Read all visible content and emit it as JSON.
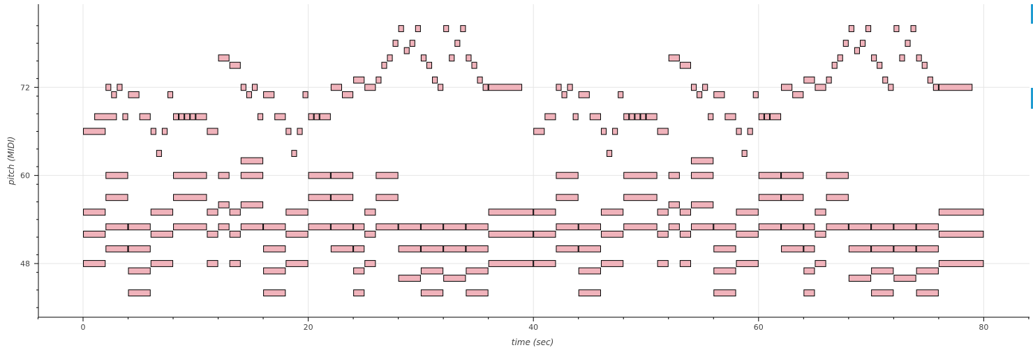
{
  "chart_data": {
    "type": "piano-roll",
    "xlabel": "time (sec)",
    "ylabel": "pitch (MIDI)",
    "xlim": [
      -4,
      84
    ],
    "ylim": [
      41,
      83
    ],
    "xticks": [
      0,
      20,
      40,
      60,
      80
    ],
    "yticks": [
      48,
      60,
      72
    ],
    "grid": true,
    "colors": {
      "note_fill": "#f0b3bb",
      "note_stroke": "#000000",
      "grid": "#e5e5e5",
      "axis": "#000000"
    },
    "note_height": 0.84,
    "notes": [
      [
        0,
        2,
        66
      ],
      [
        0,
        2,
        55
      ],
      [
        0,
        2,
        52
      ],
      [
        0,
        2,
        48
      ],
      [
        1,
        2,
        68
      ],
      [
        2,
        0.5,
        72
      ],
      [
        2,
        2,
        60
      ],
      [
        2,
        2,
        57
      ],
      [
        2,
        2,
        53
      ],
      [
        2,
        2,
        50
      ],
      [
        2.5,
        0.5,
        71
      ],
      [
        3,
        0.5,
        72
      ],
      [
        3.5,
        0.5,
        68
      ],
      [
        4,
        1,
        71
      ],
      [
        4,
        2,
        53
      ],
      [
        4,
        2,
        50
      ],
      [
        4,
        2,
        47
      ],
      [
        4,
        2,
        44
      ],
      [
        5,
        1,
        68
      ],
      [
        6,
        0.5,
        66
      ],
      [
        6,
        2,
        55
      ],
      [
        6,
        2,
        52
      ],
      [
        6,
        2,
        48
      ],
      [
        6.5,
        0.5,
        63
      ],
      [
        7,
        0.5,
        66
      ],
      [
        7.5,
        0.5,
        71
      ],
      [
        8,
        0.5,
        68
      ],
      [
        8,
        3,
        60
      ],
      [
        8,
        3,
        57
      ],
      [
        8,
        3,
        53
      ],
      [
        8.5,
        0.5,
        68
      ],
      [
        9,
        0.5,
        68
      ],
      [
        9.5,
        0.5,
        68
      ],
      [
        10,
        1,
        68
      ],
      [
        11,
        1,
        66
      ],
      [
        11,
        1,
        55
      ],
      [
        11,
        1,
        52
      ],
      [
        11,
        1,
        48
      ],
      [
        12,
        1,
        76
      ],
      [
        12,
        1,
        60
      ],
      [
        12,
        1,
        56
      ],
      [
        12,
        1,
        53
      ],
      [
        13,
        1,
        75
      ],
      [
        13,
        1,
        55
      ],
      [
        13,
        1,
        52
      ],
      [
        13,
        1,
        48
      ],
      [
        14,
        0.5,
        72
      ],
      [
        14,
        2,
        62
      ],
      [
        14,
        2,
        60
      ],
      [
        14,
        2,
        56
      ],
      [
        14,
        2,
        53
      ],
      [
        14.5,
        0.5,
        71
      ],
      [
        15,
        0.5,
        72
      ],
      [
        15.5,
        0.5,
        68
      ],
      [
        16,
        1,
        71
      ],
      [
        16,
        2,
        53
      ],
      [
        16,
        2,
        50
      ],
      [
        16,
        2,
        47
      ],
      [
        16,
        2,
        44
      ],
      [
        17,
        1,
        68
      ],
      [
        18,
        0.5,
        66
      ],
      [
        18,
        2,
        55
      ],
      [
        18,
        2,
        52
      ],
      [
        18,
        2,
        48
      ],
      [
        18.5,
        0.5,
        63
      ],
      [
        19,
        0.5,
        66
      ],
      [
        19.5,
        0.5,
        71
      ],
      [
        20,
        0.5,
        68
      ],
      [
        20,
        2,
        60
      ],
      [
        20,
        2,
        57
      ],
      [
        20,
        2,
        53
      ],
      [
        20.5,
        0.5,
        68
      ],
      [
        21,
        1,
        68
      ],
      [
        22,
        1,
        72
      ],
      [
        22,
        2,
        60
      ],
      [
        22,
        2,
        57
      ],
      [
        22,
        2,
        53
      ],
      [
        22,
        2,
        50
      ],
      [
        23,
        1,
        71
      ],
      [
        24,
        1,
        73
      ],
      [
        24,
        1,
        53
      ],
      [
        24,
        1,
        50
      ],
      [
        24,
        1,
        47
      ],
      [
        24,
        1,
        44
      ],
      [
        25,
        1,
        72
      ],
      [
        25,
        1,
        55
      ],
      [
        25,
        1,
        52
      ],
      [
        25,
        1,
        48
      ],
      [
        26,
        0.5,
        73
      ],
      [
        26,
        2,
        60
      ],
      [
        26,
        2,
        57
      ],
      [
        26,
        2,
        53
      ],
      [
        26.5,
        0.5,
        75
      ],
      [
        27,
        0.5,
        76
      ],
      [
        27.5,
        0.5,
        78
      ],
      [
        28,
        0.5,
        80
      ],
      [
        28,
        2,
        53
      ],
      [
        28,
        2,
        50
      ],
      [
        28,
        2,
        46
      ],
      [
        28.5,
        0.5,
        77
      ],
      [
        29,
        0.5,
        78
      ],
      [
        29.5,
        0.5,
        80
      ],
      [
        30,
        0.5,
        76
      ],
      [
        30,
        2,
        53
      ],
      [
        30,
        2,
        50
      ],
      [
        30,
        2,
        47
      ],
      [
        30,
        2,
        44
      ],
      [
        30.5,
        0.5,
        75
      ],
      [
        31,
        0.5,
        73
      ],
      [
        31.5,
        0.5,
        72
      ],
      [
        32,
        0.5,
        80
      ],
      [
        32,
        2,
        53
      ],
      [
        32,
        2,
        50
      ],
      [
        32,
        2,
        46
      ],
      [
        32.5,
        0.5,
        76
      ],
      [
        33,
        0.5,
        78
      ],
      [
        33.5,
        0.5,
        80
      ],
      [
        34,
        0.5,
        76
      ],
      [
        34,
        2,
        53
      ],
      [
        34,
        2,
        50
      ],
      [
        34,
        2,
        47
      ],
      [
        34,
        2,
        44
      ],
      [
        34.5,
        0.5,
        75
      ],
      [
        35,
        0.5,
        73
      ],
      [
        35.5,
        0.5,
        72
      ],
      [
        36,
        3,
        72
      ],
      [
        36,
        4,
        55
      ],
      [
        36,
        4,
        52
      ],
      [
        36,
        4,
        48
      ],
      [
        40,
        1,
        66
      ],
      [
        40,
        2,
        55
      ],
      [
        40,
        2,
        52
      ],
      [
        40,
        2,
        48
      ],
      [
        41,
        1,
        68
      ],
      [
        42,
        0.5,
        72
      ],
      [
        42,
        2,
        60
      ],
      [
        42,
        2,
        57
      ],
      [
        42,
        2,
        53
      ],
      [
        42,
        2,
        50
      ],
      [
        42.5,
        0.5,
        71
      ],
      [
        43,
        0.5,
        72
      ],
      [
        43.5,
        0.5,
        68
      ],
      [
        44,
        1,
        71
      ],
      [
        44,
        2,
        53
      ],
      [
        44,
        2,
        50
      ],
      [
        44,
        2,
        47
      ],
      [
        44,
        2,
        44
      ],
      [
        45,
        1,
        68
      ],
      [
        46,
        0.5,
        66
      ],
      [
        46,
        2,
        55
      ],
      [
        46,
        2,
        52
      ],
      [
        46,
        2,
        48
      ],
      [
        46.5,
        0.5,
        63
      ],
      [
        47,
        0.5,
        66
      ],
      [
        47.5,
        0.5,
        71
      ],
      [
        48,
        0.5,
        68
      ],
      [
        48,
        3,
        60
      ],
      [
        48,
        3,
        57
      ],
      [
        48,
        3,
        53
      ],
      [
        48.5,
        0.5,
        68
      ],
      [
        49,
        0.5,
        68
      ],
      [
        49.5,
        0.5,
        68
      ],
      [
        50,
        1,
        68
      ],
      [
        51,
        1,
        66
      ],
      [
        51,
        1,
        55
      ],
      [
        51,
        1,
        52
      ],
      [
        51,
        1,
        48
      ],
      [
        52,
        1,
        76
      ],
      [
        52,
        1,
        60
      ],
      [
        52,
        1,
        56
      ],
      [
        52,
        1,
        53
      ],
      [
        53,
        1,
        75
      ],
      [
        53,
        1,
        55
      ],
      [
        53,
        1,
        52
      ],
      [
        53,
        1,
        48
      ],
      [
        54,
        0.5,
        72
      ],
      [
        54,
        2,
        62
      ],
      [
        54,
        2,
        60
      ],
      [
        54,
        2,
        56
      ],
      [
        54,
        2,
        53
      ],
      [
        54.5,
        0.5,
        71
      ],
      [
        55,
        0.5,
        72
      ],
      [
        55.5,
        0.5,
        68
      ],
      [
        56,
        1,
        71
      ],
      [
        56,
        2,
        53
      ],
      [
        56,
        2,
        50
      ],
      [
        56,
        2,
        47
      ],
      [
        56,
        2,
        44
      ],
      [
        57,
        1,
        68
      ],
      [
        58,
        0.5,
        66
      ],
      [
        58,
        2,
        55
      ],
      [
        58,
        2,
        52
      ],
      [
        58,
        2,
        48
      ],
      [
        58.5,
        0.5,
        63
      ],
      [
        59,
        0.5,
        66
      ],
      [
        59.5,
        0.5,
        71
      ],
      [
        60,
        0.5,
        68
      ],
      [
        60,
        2,
        60
      ],
      [
        60,
        2,
        57
      ],
      [
        60,
        2,
        53
      ],
      [
        60.5,
        0.5,
        68
      ],
      [
        61,
        1,
        68
      ],
      [
        62,
        1,
        72
      ],
      [
        62,
        2,
        60
      ],
      [
        62,
        2,
        57
      ],
      [
        62,
        2,
        53
      ],
      [
        62,
        2,
        50
      ],
      [
        63,
        1,
        71
      ],
      [
        64,
        1,
        73
      ],
      [
        64,
        1,
        53
      ],
      [
        64,
        1,
        50
      ],
      [
        64,
        1,
        47
      ],
      [
        64,
        1,
        44
      ],
      [
        65,
        1,
        72
      ],
      [
        65,
        1,
        55
      ],
      [
        65,
        1,
        52
      ],
      [
        65,
        1,
        48
      ],
      [
        66,
        0.5,
        73
      ],
      [
        66,
        2,
        60
      ],
      [
        66,
        2,
        57
      ],
      [
        66,
        2,
        53
      ],
      [
        66.5,
        0.5,
        75
      ],
      [
        67,
        0.5,
        76
      ],
      [
        67.5,
        0.5,
        78
      ],
      [
        68,
        0.5,
        80
      ],
      [
        68,
        2,
        53
      ],
      [
        68,
        2,
        50
      ],
      [
        68,
        2,
        46
      ],
      [
        68.5,
        0.5,
        77
      ],
      [
        69,
        0.5,
        78
      ],
      [
        69.5,
        0.5,
        80
      ],
      [
        70,
        0.5,
        76
      ],
      [
        70,
        2,
        53
      ],
      [
        70,
        2,
        50
      ],
      [
        70,
        2,
        47
      ],
      [
        70,
        2,
        44
      ],
      [
        70.5,
        0.5,
        75
      ],
      [
        71,
        0.5,
        73
      ],
      [
        71.5,
        0.5,
        72
      ],
      [
        72,
        0.5,
        80
      ],
      [
        72,
        2,
        53
      ],
      [
        72,
        2,
        50
      ],
      [
        72,
        2,
        46
      ],
      [
        72.5,
        0.5,
        76
      ],
      [
        73,
        0.5,
        78
      ],
      [
        73.5,
        0.5,
        80
      ],
      [
        74,
        0.5,
        76
      ],
      [
        74,
        2,
        53
      ],
      [
        74,
        2,
        50
      ],
      [
        74,
        2,
        47
      ],
      [
        74,
        2,
        44
      ],
      [
        74.5,
        0.5,
        75
      ],
      [
        75,
        0.5,
        73
      ],
      [
        75.5,
        0.5,
        72
      ],
      [
        76,
        3,
        72
      ],
      [
        76,
        4,
        55
      ],
      [
        76,
        4,
        52
      ],
      [
        76,
        4,
        48
      ]
    ],
    "notes_format": [
      "start_sec",
      "duration_sec",
      "midi_pitch"
    ]
  }
}
